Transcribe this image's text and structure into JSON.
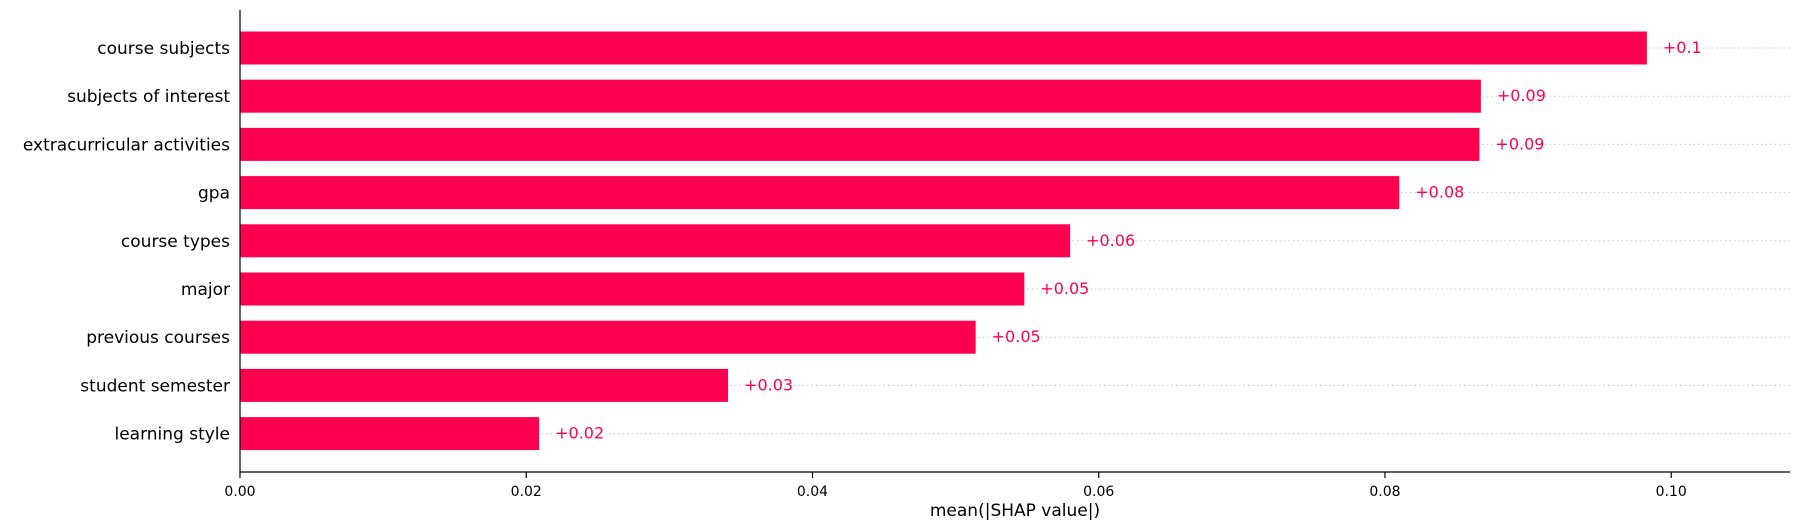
{
  "chart_data": {
    "type": "bar",
    "orientation": "horizontal",
    "categories": [
      "course subjects",
      "subjects of interest",
      "extracurricular activities",
      "gpa",
      "course types",
      "major",
      "previous courses",
      "student semester",
      "learning style"
    ],
    "values": [
      0.0983,
      0.0867,
      0.0866,
      0.081,
      0.058,
      0.0548,
      0.0514,
      0.0341,
      0.0209
    ],
    "value_labels": [
      "+0.1",
      "+0.09",
      "+0.09",
      "+0.08",
      "+0.06",
      "+0.05",
      "+0.05",
      "+0.03",
      "+0.02"
    ],
    "xlabel": "mean(|SHAP value|)",
    "ylabel": "",
    "title": "",
    "xlim": [
      0.0,
      0.1083
    ],
    "xticks": [
      0.0,
      0.02,
      0.04,
      0.06,
      0.08,
      0.1
    ],
    "xtick_labels": [
      "0.00",
      "0.02",
      "0.04",
      "0.06",
      "0.08",
      "0.10"
    ],
    "bar_color": "#ff0051",
    "grid": "dotted horizontal guide lines per bar",
    "legend": "none"
  }
}
